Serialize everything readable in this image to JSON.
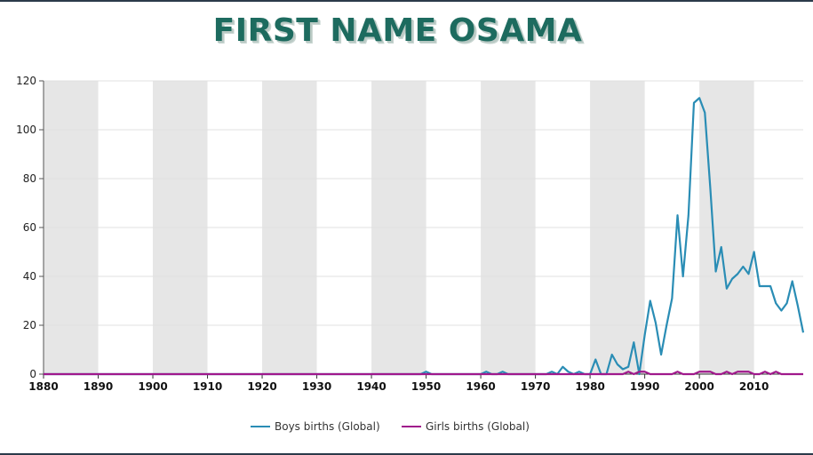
{
  "chart_data": {
    "type": "line",
    "title": "FIRST NAME OSAMA",
    "xlabel": "",
    "ylabel": "",
    "xlim": [
      1880,
      2019
    ],
    "ylim": [
      0,
      120
    ],
    "x_ticks": [
      "1880",
      "1890",
      "1900",
      "1910",
      "1920",
      "1930",
      "1940",
      "1950",
      "1960",
      "1970",
      "1980",
      "1990",
      "2000",
      "2010"
    ],
    "y_ticks": [
      "0",
      "20",
      "40",
      "60",
      "80",
      "100",
      "120"
    ],
    "grid": true,
    "shaded_decades": [
      1880,
      1900,
      1920,
      1940,
      1960,
      1980,
      2000
    ],
    "legend_position": "bottom",
    "series": [
      {
        "name": "Boys births (Global)",
        "color": "#2a8db5",
        "points": [
          [
            1880,
            0
          ],
          [
            1949,
            0
          ],
          [
            1950,
            1
          ],
          [
            1951,
            0
          ],
          [
            1960,
            0
          ],
          [
            1961,
            1
          ],
          [
            1962,
            0
          ],
          [
            1963,
            0
          ],
          [
            1964,
            1
          ],
          [
            1965,
            0
          ],
          [
            1972,
            0
          ],
          [
            1973,
            1
          ],
          [
            1974,
            0
          ],
          [
            1975,
            3
          ],
          [
            1976,
            1
          ],
          [
            1977,
            0
          ],
          [
            1978,
            1
          ],
          [
            1979,
            0
          ],
          [
            1980,
            0
          ],
          [
            1981,
            6
          ],
          [
            1982,
            0
          ],
          [
            1983,
            0
          ],
          [
            1984,
            8
          ],
          [
            1985,
            4
          ],
          [
            1986,
            2
          ],
          [
            1987,
            3
          ],
          [
            1988,
            13
          ],
          [
            1989,
            0
          ],
          [
            1990,
            16
          ],
          [
            1991,
            30
          ],
          [
            1992,
            21
          ],
          [
            1993,
            8
          ],
          [
            1994,
            20
          ],
          [
            1995,
            31
          ],
          [
            1996,
            65
          ],
          [
            1997,
            40
          ],
          [
            1998,
            65
          ],
          [
            1999,
            111
          ],
          [
            2000,
            113
          ],
          [
            2001,
            107
          ],
          [
            2002,
            76
          ],
          [
            2003,
            42
          ],
          [
            2004,
            52
          ],
          [
            2005,
            35
          ],
          [
            2006,
            39
          ],
          [
            2007,
            41
          ],
          [
            2008,
            44
          ],
          [
            2009,
            41
          ],
          [
            2010,
            50
          ],
          [
            2011,
            36
          ],
          [
            2012,
            36
          ],
          [
            2013,
            36
          ],
          [
            2014,
            29
          ],
          [
            2015,
            26
          ],
          [
            2016,
            29
          ],
          [
            2017,
            38
          ],
          [
            2018,
            28
          ],
          [
            2019,
            17
          ]
        ]
      },
      {
        "name": "Girls births (Global)",
        "color": "#a0198c",
        "points": [
          [
            1880,
            0
          ],
          [
            1985,
            0
          ],
          [
            1986,
            0
          ],
          [
            1987,
            1
          ],
          [
            1988,
            0
          ],
          [
            1989,
            1
          ],
          [
            1990,
            1
          ],
          [
            1991,
            0
          ],
          [
            1995,
            0
          ],
          [
            1996,
            1
          ],
          [
            1997,
            0
          ],
          [
            1999,
            0
          ],
          [
            2000,
            1
          ],
          [
            2001,
            1
          ],
          [
            2002,
            1
          ],
          [
            2003,
            0
          ],
          [
            2004,
            0
          ],
          [
            2005,
            1
          ],
          [
            2006,
            0
          ],
          [
            2007,
            1
          ],
          [
            2008,
            1
          ],
          [
            2009,
            1
          ],
          [
            2010,
            0
          ],
          [
            2011,
            0
          ],
          [
            2012,
            1
          ],
          [
            2013,
            0
          ],
          [
            2014,
            1
          ],
          [
            2015,
            0
          ],
          [
            2019,
            0
          ]
        ]
      }
    ]
  }
}
